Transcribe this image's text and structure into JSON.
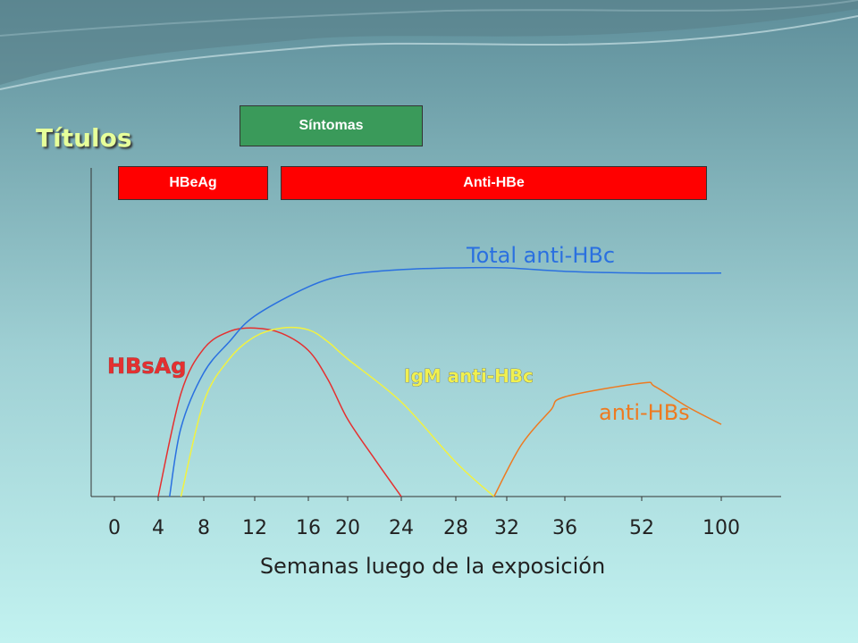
{
  "title": "Títulos",
  "boxes": {
    "symptoms": {
      "label": "Síntomas",
      "color": "#3a9a5a"
    },
    "hbeag": {
      "label": "HBeAg",
      "color": "#ff0000"
    },
    "anti_hbe": {
      "label": "Anti-HBe",
      "color": "#ff0000"
    }
  },
  "chart_data": {
    "type": "line",
    "xlabel": "Semanas luego de la exposición",
    "ylabel": "Títulos",
    "x_ticks": [
      "0",
      "4",
      "8",
      "12",
      "16",
      "20",
      "24",
      "28",
      "32",
      "36",
      "52",
      "100"
    ],
    "grid": false,
    "series": [
      {
        "name": "HBsAg",
        "color": "#e53030",
        "label_color": "#e53030",
        "x": [
          4,
          6,
          8,
          10,
          12,
          14,
          16,
          18,
          20,
          22,
          24
        ],
        "y": [
          0,
          0.6,
          0.86,
          0.96,
          0.98,
          0.95,
          0.85,
          0.68,
          0.45,
          0.22,
          0
        ]
      },
      {
        "name": "Total anti-HBc",
        "color": "#2a70e0",
        "label_color": "#2a70e0",
        "x": [
          5,
          6,
          8,
          10,
          12,
          16,
          20,
          24,
          28,
          32,
          36,
          52,
          100
        ],
        "y": [
          0,
          0.4,
          0.72,
          0.9,
          1.05,
          1.22,
          1.29,
          1.32,
          1.33,
          1.33,
          1.31,
          1.3,
          1.3
        ]
      },
      {
        "name": "IgM anti-HBc",
        "color": "#f2f240",
        "label_color": "#f0f050",
        "x": [
          6,
          8,
          10,
          12,
          14,
          16,
          18,
          20,
          24,
          28,
          31
        ],
        "y": [
          0,
          0.55,
          0.8,
          0.93,
          0.98,
          0.97,
          0.9,
          0.8,
          0.55,
          0.2,
          0
        ]
      },
      {
        "name": "anti-HBs",
        "color": "#ee7a20",
        "label_color": "#ee7a20",
        "x": [
          31,
          33,
          35,
          36,
          52,
          60,
          80,
          100
        ],
        "y": [
          0,
          0.3,
          0.5,
          0.58,
          0.66,
          0.64,
          0.52,
          0.42
        ]
      }
    ]
  }
}
